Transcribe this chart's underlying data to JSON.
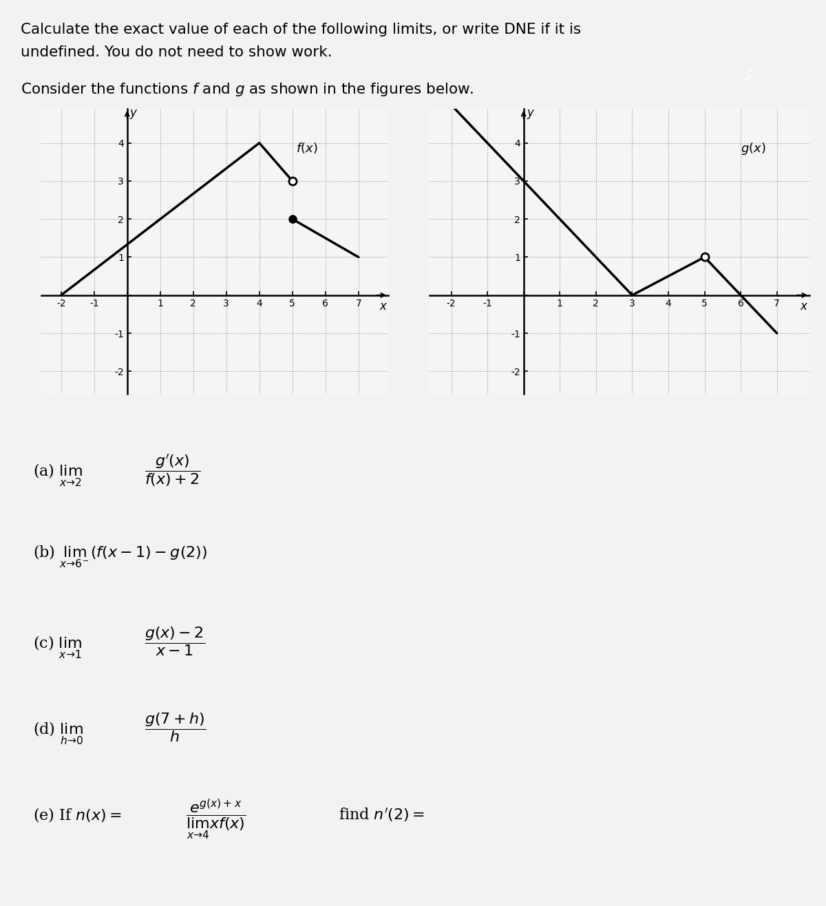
{
  "title_line1": "Calculate the exact value of each of the following limits, or write DNE if it is",
  "title_line2": "undefined. You do not need to show work.",
  "subtitle": "Consider the functions $f$ and $g$ as shown in the figures below.",
  "bg_color": "#f2f2f2",
  "graph_bg": "#f5f5f5",
  "f_segments": [
    [
      [
        -2,
        0
      ],
      [
        4,
        4
      ]
    ],
    [
      [
        4,
        4
      ],
      [
        5,
        3
      ]
    ],
    [
      [
        5,
        2
      ],
      [
        7,
        1
      ]
    ]
  ],
  "f_open_circles": [
    [
      5,
      3
    ]
  ],
  "f_filled_circles": [
    [
      5,
      2
    ]
  ],
  "g_segments": [
    [
      [
        -2,
        5
      ],
      [
        3,
        0
      ]
    ],
    [
      [
        3,
        0
      ],
      [
        5,
        1
      ]
    ],
    [
      [
        5,
        1
      ],
      [
        7,
        -1
      ]
    ]
  ],
  "g_open_circles": [
    [
      5,
      1
    ]
  ],
  "g_filled_circles": []
}
